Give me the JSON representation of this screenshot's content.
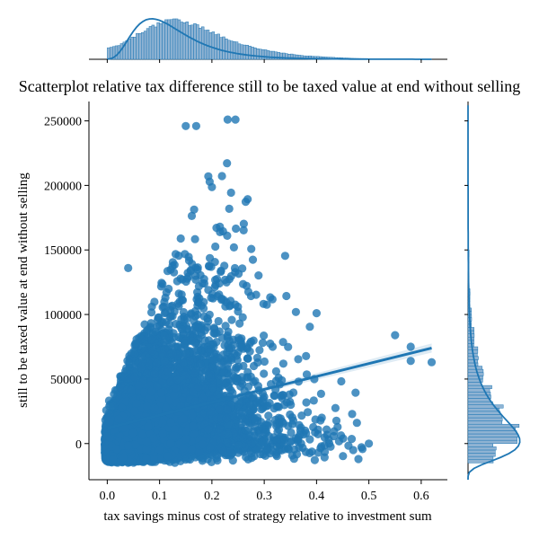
{
  "chart_data": {
    "type": "scatter",
    "title": "Scatterplot relative tax difference still to be taxed value at end without selling",
    "xlabel": "tax savings minus cost of strategy relative to investment sum",
    "ylabel": "still to be taxed value at end without selling",
    "xlim": [
      -0.035,
      0.65
    ],
    "ylim": [
      -28000,
      265000
    ],
    "x_ticks": [
      0.0,
      0.1,
      0.2,
      0.3,
      0.4,
      0.5,
      0.6
    ],
    "x_tick_labels": [
      "0.0",
      "0.1",
      "0.2",
      "0.3",
      "0.4",
      "0.5",
      "0.6"
    ],
    "y_ticks": [
      0,
      50000,
      100000,
      150000,
      200000,
      250000
    ],
    "y_tick_labels": [
      "0",
      "50000",
      "100000",
      "150000",
      "200000",
      "250000"
    ],
    "grid": false,
    "legend": "none",
    "colors": {
      "points": "#1f77b4",
      "marginal_fill": "#8fb3d3",
      "marginal_edge": "#1f77b4"
    },
    "regression_line": {
      "x": [
        0.0,
        0.62
      ],
      "y": [
        12000,
        74000
      ]
    },
    "point_count": 9000,
    "key_points": [
      {
        "x": 0.09,
        "y": 20000
      },
      {
        "x": 0.17,
        "y": 246000
      },
      {
        "x": 0.23,
        "y": 251000
      },
      {
        "x": 0.245,
        "y": 251000
      },
      {
        "x": 0.15,
        "y": 246000
      },
      {
        "x": 0.4,
        "y": 101000
      },
      {
        "x": 0.55,
        "y": 84000
      },
      {
        "x": 0.58,
        "y": 75000
      },
      {
        "x": 0.58,
        "y": 64000
      },
      {
        "x": 0.62,
        "y": 63000
      },
      {
        "x": 0.5,
        "y": 0
      },
      {
        "x": 0.47,
        "y": -5000
      },
      {
        "x": 0.48,
        "y": -12000
      },
      {
        "x": 0.04,
        "y": 136000
      },
      {
        "x": 0.41,
        "y": 20000
      }
    ],
    "marginal_x_hist": {
      "bin_edges": [
        0.0,
        0.05,
        0.1,
        0.15,
        0.2,
        0.25,
        0.3,
        0.35,
        0.4,
        0.45,
        0.5,
        0.55,
        0.6,
        0.62
      ],
      "relative_counts": [
        0.35,
        0.75,
        1.0,
        0.82,
        0.52,
        0.3,
        0.17,
        0.09,
        0.05,
        0.02,
        0.01,
        0.005,
        0.002
      ]
    },
    "marginal_y_hist": {
      "bin_edges": [
        -15000,
        0,
        15000,
        30000,
        45000,
        60000,
        75000,
        90000,
        105000,
        120000,
        150000,
        200000,
        251000
      ],
      "relative_counts": [
        0.55,
        1.0,
        0.7,
        0.48,
        0.3,
        0.2,
        0.12,
        0.07,
        0.04,
        0.02,
        0.01,
        0.003
      ]
    }
  }
}
